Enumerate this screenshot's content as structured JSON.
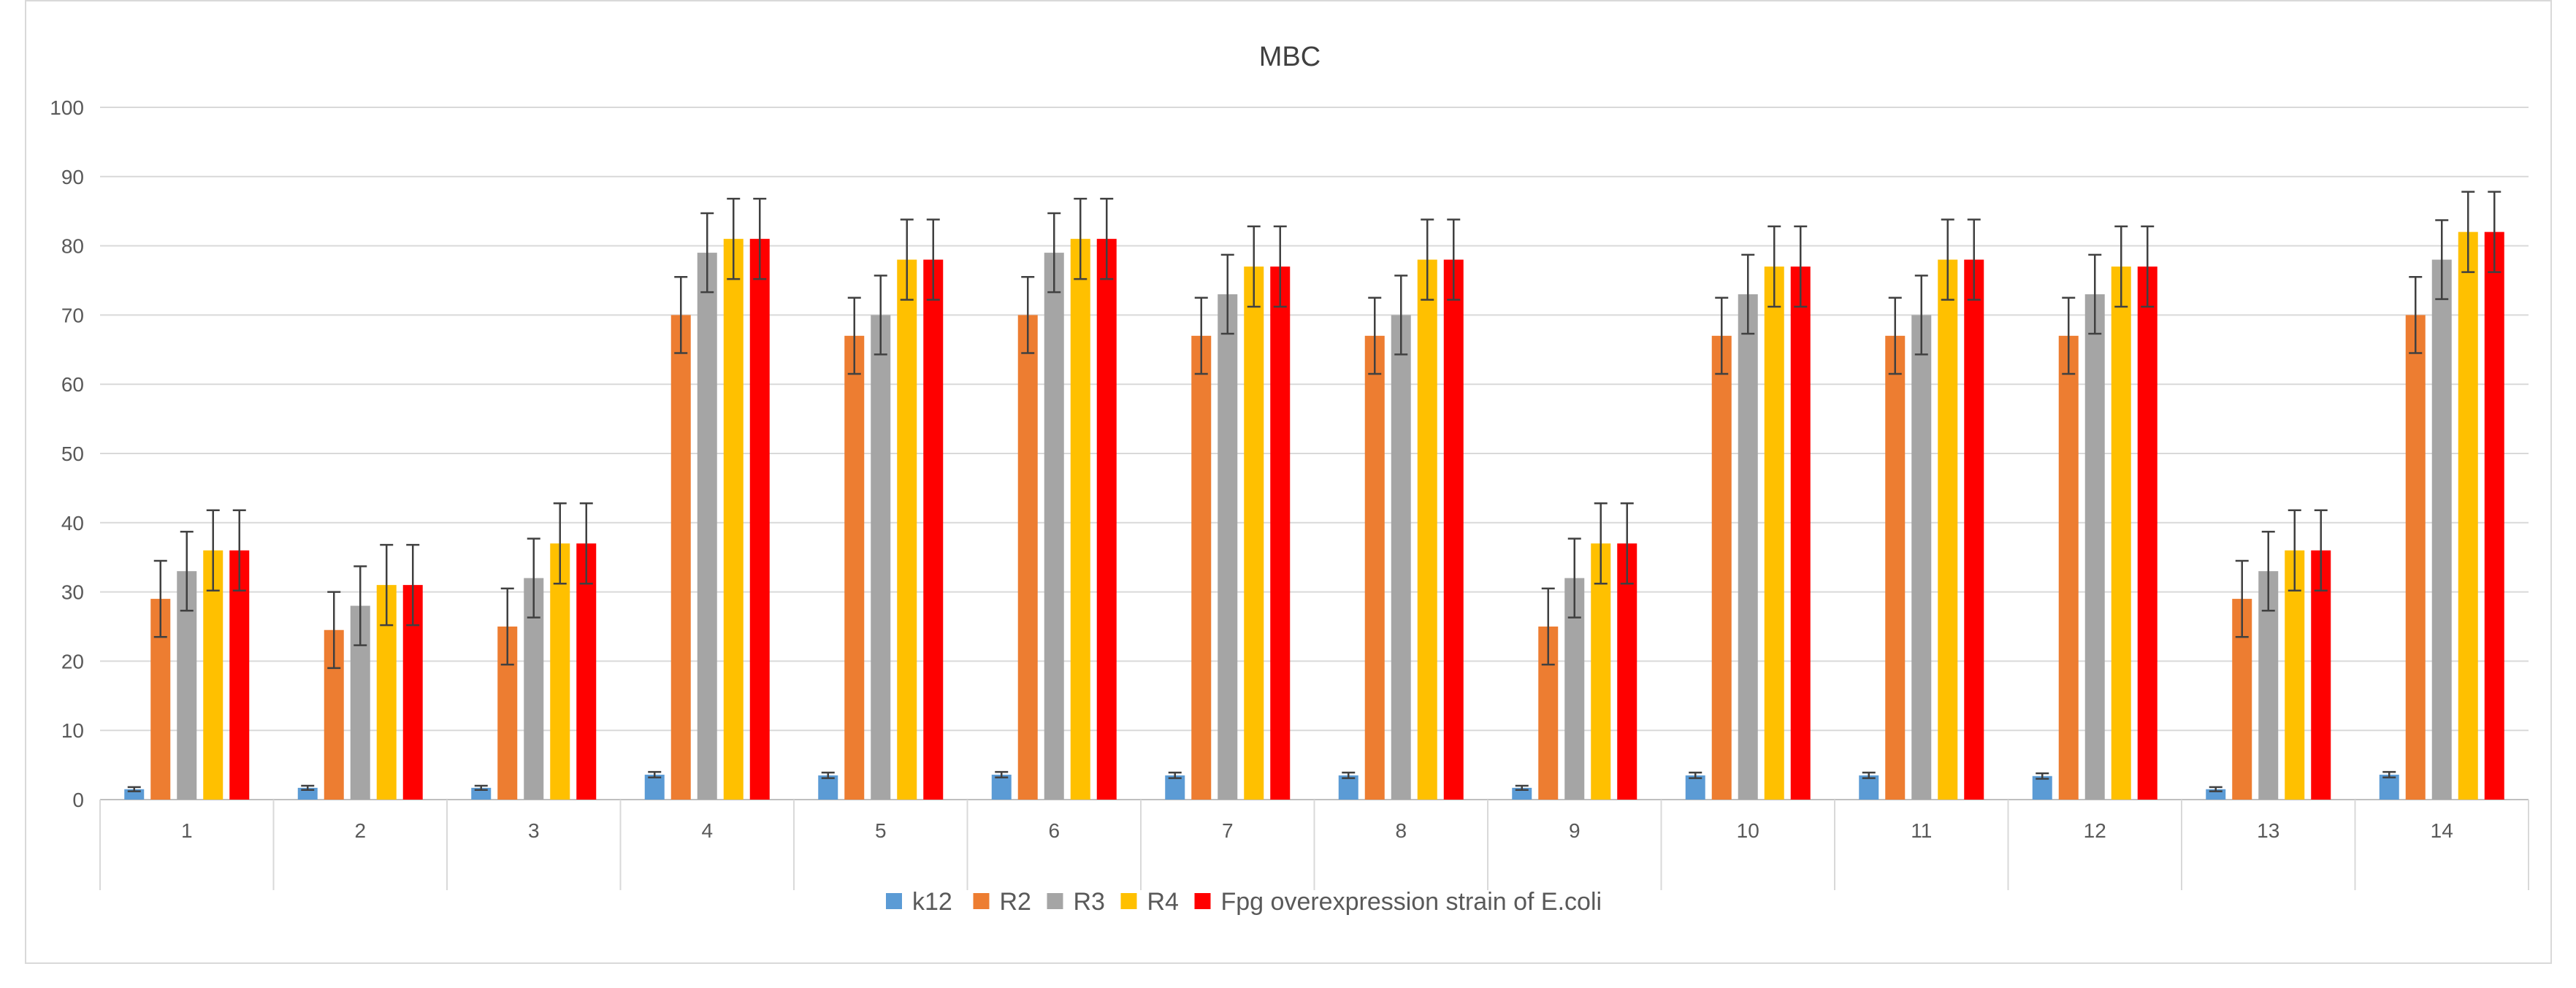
{
  "chart_data": {
    "type": "bar",
    "title": "MBC",
    "xlabel": "",
    "ylabel": "",
    "ylim": [
      0,
      100
    ],
    "yticks": [
      0,
      10,
      20,
      30,
      40,
      50,
      60,
      70,
      80,
      90,
      100
    ],
    "grid": true,
    "legend_position": "bottom",
    "error_bars": true,
    "categories": [
      "1",
      "2",
      "3",
      "4",
      "5",
      "6",
      "7",
      "8",
      "9",
      "10",
      "11",
      "12",
      "13",
      "14"
    ],
    "series": [
      {
        "name": "k12",
        "color": "#5b9bd5",
        "values": [
          1.5,
          1.7,
          1.7,
          3.6,
          3.5,
          3.6,
          3.5,
          3.5,
          1.7,
          3.5,
          3.5,
          3.4,
          1.5,
          3.6
        ],
        "errors": [
          0.3,
          0.3,
          0.3,
          0.4,
          0.4,
          0.4,
          0.4,
          0.4,
          0.3,
          0.4,
          0.4,
          0.4,
          0.3,
          0.4
        ]
      },
      {
        "name": "R2",
        "color": "#ed7d31",
        "values": [
          29,
          24.5,
          25,
          70,
          67,
          70,
          67,
          67,
          25,
          67,
          67,
          67,
          29,
          70
        ],
        "errors": [
          5.5,
          5.5,
          5.5,
          5.5,
          5.5,
          5.5,
          5.5,
          5.5,
          5.5,
          5.5,
          5.5,
          5.5,
          5.5,
          5.5
        ]
      },
      {
        "name": "R3",
        "color": "#a5a5a5",
        "values": [
          33,
          28,
          32,
          79,
          70,
          79,
          73,
          70,
          32,
          73,
          70,
          73,
          33,
          78
        ],
        "errors": [
          5.7,
          5.7,
          5.7,
          5.7,
          5.7,
          5.7,
          5.7,
          5.7,
          5.7,
          5.7,
          5.7,
          5.7,
          5.7,
          5.7
        ]
      },
      {
        "name": "R4",
        "color": "#ffc000",
        "values": [
          36,
          31,
          37,
          81,
          78,
          81,
          77,
          78,
          37,
          77,
          78,
          77,
          36,
          82
        ],
        "errors": [
          5.8,
          5.8,
          5.8,
          5.8,
          5.8,
          5.8,
          5.8,
          5.8,
          5.8,
          5.8,
          5.8,
          5.8,
          5.8,
          5.8
        ]
      },
      {
        "name": "Fpg overexpression strain of E.coli",
        "color": "#ff0000",
        "values": [
          36,
          31,
          37,
          81,
          78,
          81,
          77,
          78,
          37,
          77,
          78,
          77,
          36,
          82
        ],
        "errors": [
          5.8,
          5.8,
          5.8,
          5.8,
          5.8,
          5.8,
          5.8,
          5.8,
          5.8,
          5.8,
          5.8,
          5.8,
          5.8,
          5.8
        ]
      }
    ]
  }
}
